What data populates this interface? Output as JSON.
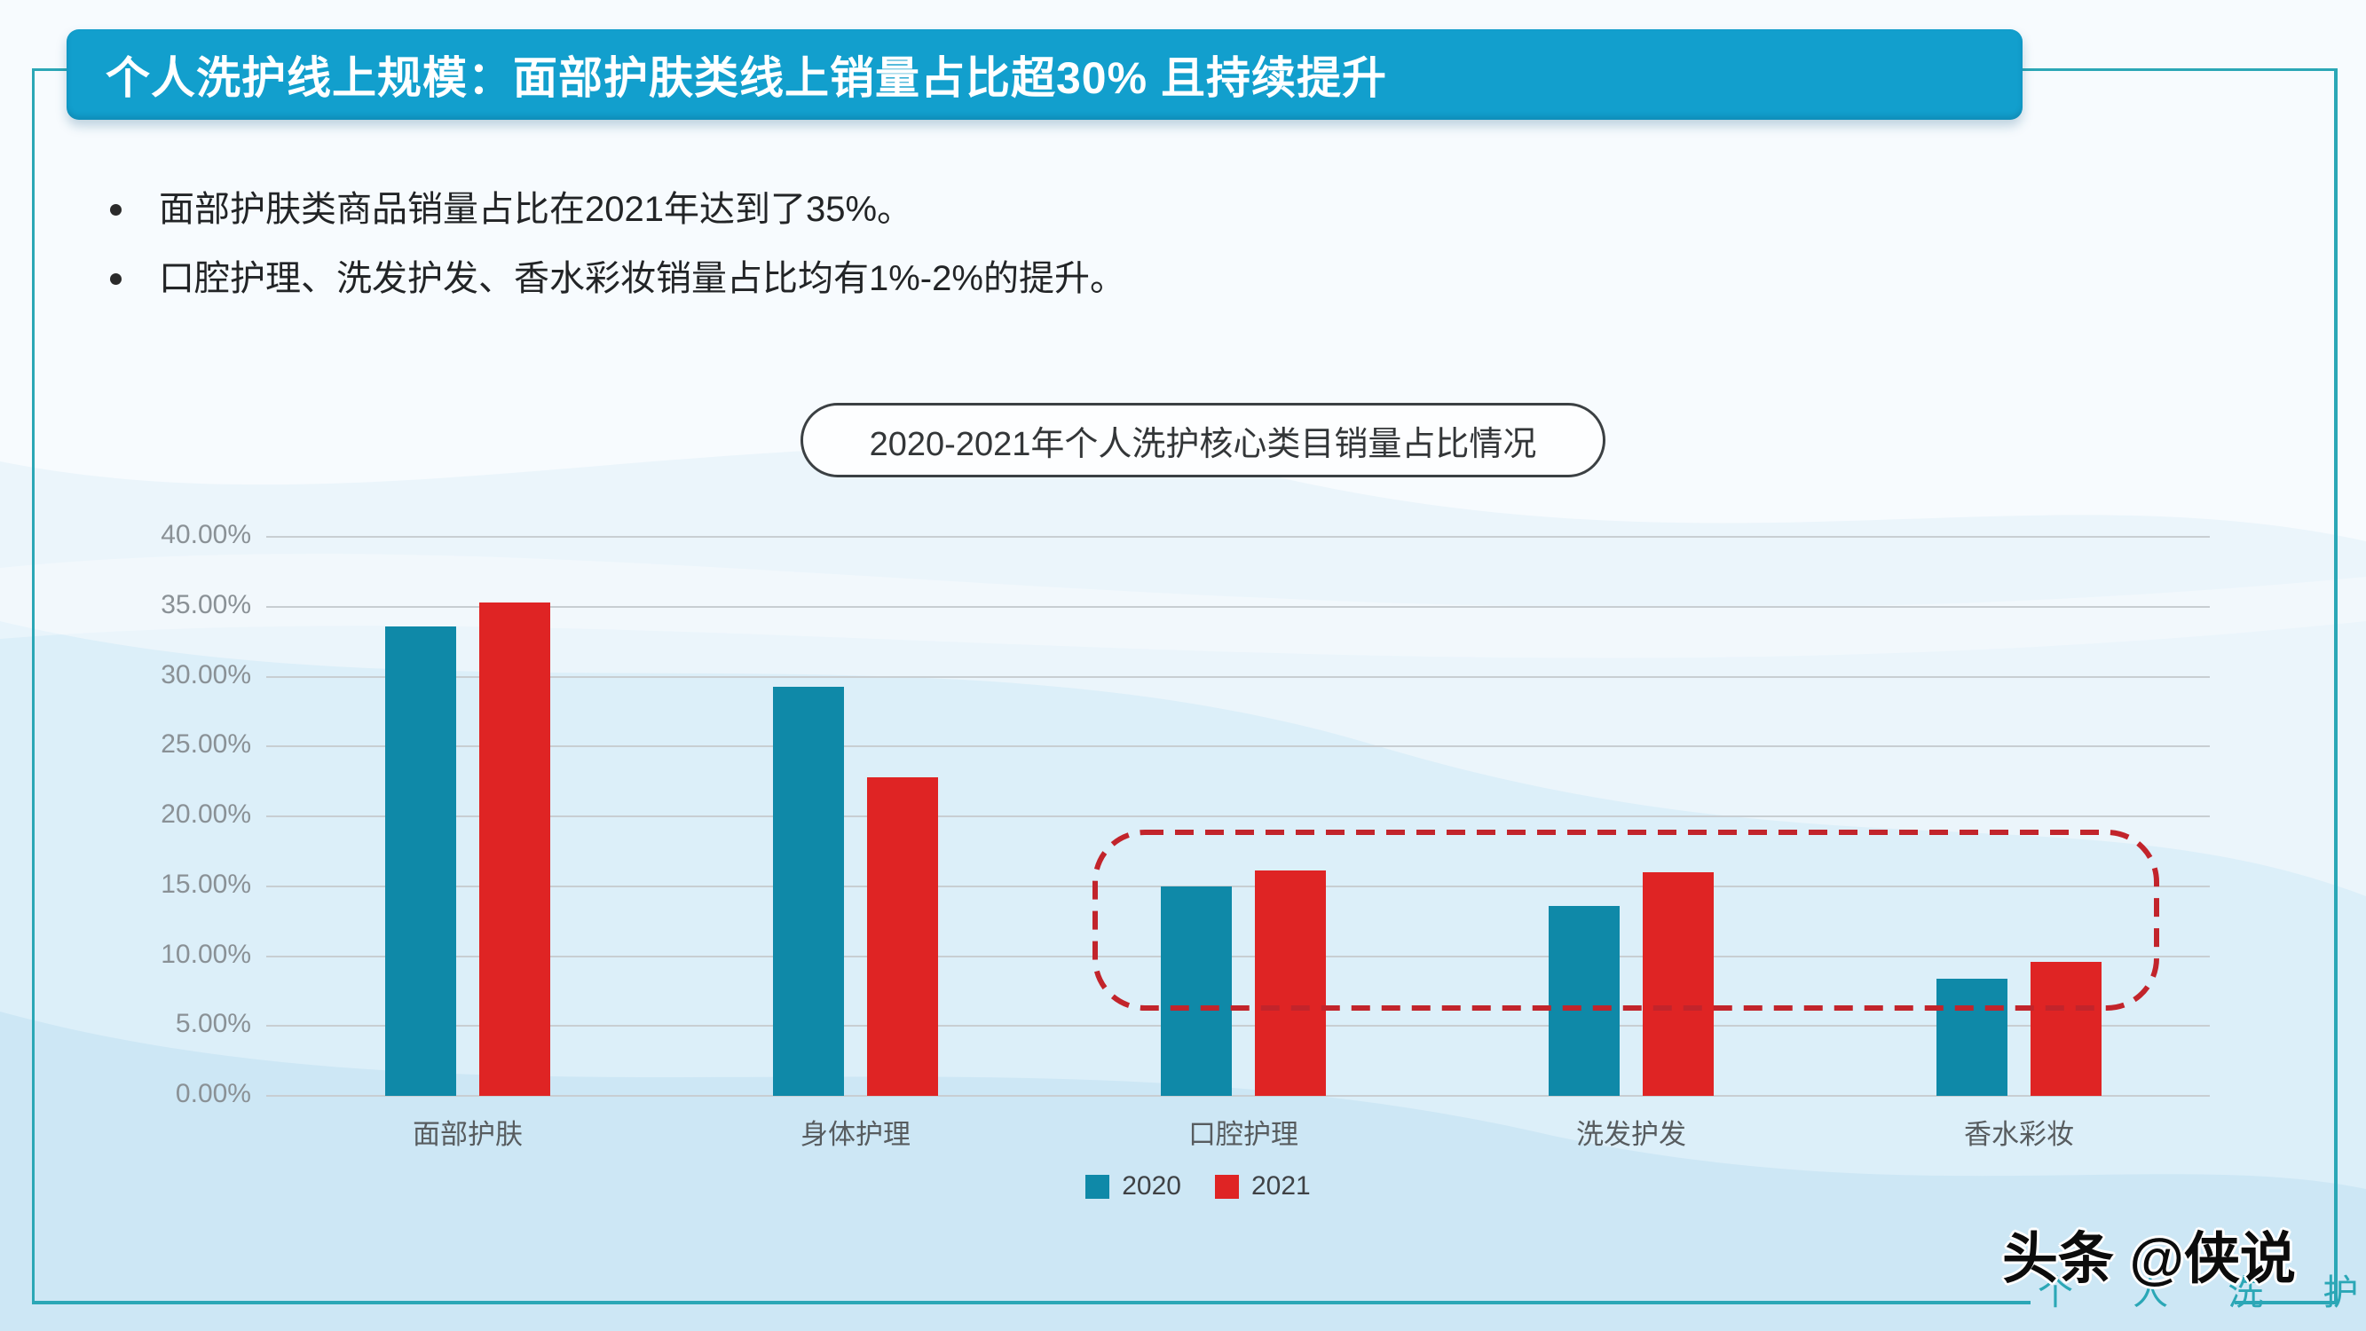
{
  "slide": {
    "title": "个人洗护线上规模：面部护肤类线上销量占比超30% 且持续提升",
    "bullets": [
      "面部护肤类商品销量占比在2021年达到了35%。",
      "口腔护理、洗发护发、香水彩妆销量占比均有1%-2%的提升。"
    ],
    "watermark": "头条 @侠说",
    "footer_brand": "个 人 洗 护"
  },
  "chart_data": {
    "type": "bar",
    "title": "2020-2021年个人洗护核心类目销量占比情况",
    "categories": [
      "面部护肤",
      "身体护理",
      "口腔护理",
      "洗发护发",
      "香水彩妆"
    ],
    "series": [
      {
        "name": "2020",
        "color": "#0F89A8",
        "values": [
          33.6,
          29.3,
          15.0,
          13.6,
          8.4
        ]
      },
      {
        "name": "2021",
        "color": "#DF2424",
        "values": [
          35.3,
          22.8,
          16.1,
          16.0,
          9.6
        ]
      }
    ],
    "ylabel": "",
    "xlabel": "",
    "ylim": [
      0,
      40
    ],
    "ytick_step": 5,
    "ytick_labels": [
      "40.00%",
      "35.00%",
      "30.00%",
      "25.00%",
      "20.00%",
      "15.00%",
      "10.00%",
      "5.00%",
      "0.00%"
    ],
    "grid": true,
    "legend_position": "bottom",
    "annotation": {
      "type": "dashed-rounded-box",
      "color": "#C2242B",
      "highlighted_categories": [
        "口腔护理",
        "洗发护发",
        "香水彩妆"
      ]
    }
  },
  "colors": {
    "title_bar_bg": "#129FCD",
    "frame_teal": "#2BA7B6",
    "grid": "#C8CED2",
    "axis_text": "#8A9196",
    "bar_2020": "#0F89A8",
    "bar_2021": "#DF2424",
    "dashed_box": "#C2242B"
  }
}
